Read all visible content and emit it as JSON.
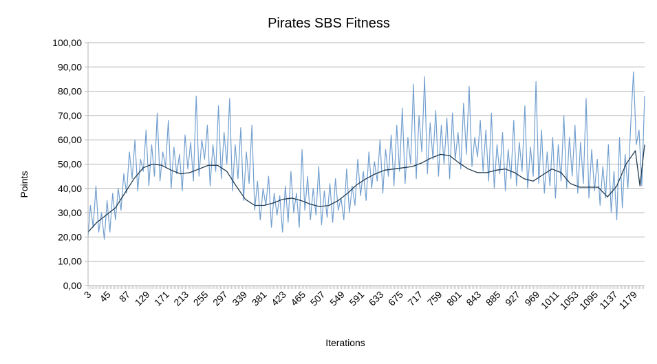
{
  "chart_data": {
    "type": "line",
    "title": "Pirates SBS Fitness",
    "xlabel": "Iterations",
    "ylabel": "Points",
    "x_range": [
      1,
      1200
    ],
    "ylim": [
      0,
      100
    ],
    "y_ticks": [
      "0,00",
      "10,00",
      "20,00",
      "30,00",
      "40,00",
      "50,00",
      "60,00",
      "70,00",
      "80,00",
      "90,00",
      "100,00"
    ],
    "x_ticks": [
      3,
      45,
      87,
      129,
      171,
      213,
      255,
      297,
      339,
      381,
      423,
      465,
      507,
      549,
      591,
      633,
      675,
      717,
      759,
      801,
      843,
      885,
      927,
      969,
      1011,
      1053,
      1095,
      1137,
      1179
    ],
    "grid": "horizontal",
    "colors": {
      "raw": "#729fcf",
      "smooth": "#1f3a4f",
      "grid": "#b3b3b3"
    },
    "series": [
      {
        "role": "raw",
        "description_points": "approximate envelope samples (iteration, points)",
        "x": [
          1,
          6,
          12,
          18,
          24,
          30,
          36,
          42,
          48,
          54,
          60,
          66,
          72,
          78,
          84,
          90,
          96,
          102,
          108,
          114,
          120,
          126,
          132,
          138,
          144,
          150,
          156,
          162,
          168,
          174,
          180,
          186,
          192,
          198,
          204,
          210,
          216,
          222,
          228,
          234,
          240,
          246,
          252,
          258,
          264,
          270,
          276,
          282,
          288,
          294,
          300,
          306,
          312,
          318,
          324,
          330,
          336,
          342,
          348,
          354,
          360,
          366,
          372,
          378,
          384,
          390,
          396,
          402,
          408,
          414,
          420,
          426,
          432,
          438,
          444,
          450,
          456,
          462,
          468,
          474,
          480,
          486,
          492,
          498,
          504,
          510,
          516,
          522,
          528,
          534,
          540,
          546,
          552,
          558,
          564,
          570,
          576,
          582,
          588,
          594,
          600,
          606,
          612,
          618,
          624,
          630,
          636,
          642,
          648,
          654,
          660,
          666,
          672,
          678,
          684,
          690,
          696,
          702,
          708,
          714,
          720,
          726,
          732,
          738,
          744,
          750,
          756,
          762,
          768,
          774,
          780,
          786,
          792,
          798,
          804,
          810,
          816,
          822,
          828,
          834,
          840,
          846,
          852,
          858,
          864,
          870,
          876,
          882,
          888,
          894,
          900,
          906,
          912,
          918,
          924,
          930,
          936,
          942,
          948,
          954,
          960,
          966,
          972,
          978,
          984,
          990,
          996,
          1002,
          1008,
          1014,
          1020,
          1026,
          1032,
          1038,
          1044,
          1050,
          1056,
          1062,
          1068,
          1074,
          1080,
          1086,
          1092,
          1098,
          1104,
          1110,
          1116,
          1122,
          1128,
          1134,
          1140,
          1146,
          1152,
          1158,
          1164,
          1170,
          1176,
          1182,
          1188,
          1194,
          1200
        ],
        "values": [
          20,
          33,
          24,
          41,
          22,
          30,
          19,
          35,
          22,
          38,
          27,
          40,
          31,
          46,
          38,
          55,
          44,
          60,
          39,
          52,
          47,
          64,
          41,
          58,
          45,
          71,
          43,
          55,
          49,
          68,
          40,
          57,
          46,
          54,
          39,
          62,
          48,
          59,
          43,
          78,
          45,
          60,
          52,
          66,
          41,
          58,
          47,
          74,
          44,
          63,
          50,
          77,
          39,
          58,
          44,
          65,
          35,
          55,
          42,
          66,
          31,
          43,
          27,
          40,
          33,
          45,
          24,
          38,
          29,
          37,
          22,
          41,
          26,
          47,
          30,
          38,
          24,
          56,
          31,
          45,
          27,
          40,
          29,
          49,
          25,
          39,
          28,
          42,
          26,
          44,
          31,
          36,
          27,
          48,
          30,
          41,
          33,
          52,
          37,
          47,
          35,
          55,
          40,
          51,
          43,
          60,
          38,
          56,
          45,
          62,
          41,
          66,
          47,
          73,
          42,
          61,
          50,
          83,
          44,
          70,
          55,
          86,
          46,
          67,
          52,
          72,
          45,
          66,
          50,
          69,
          44,
          71,
          52,
          63,
          48,
          75,
          54,
          82,
          49,
          61,
          53,
          68,
          47,
          64,
          43,
          71,
          40,
          58,
          46,
          63,
          39,
          56,
          44,
          68,
          41,
          59,
          47,
          74,
          40,
          57,
          45,
          84,
          42,
          64,
          38,
          55,
          41,
          61,
          36,
          58,
          43,
          70,
          40,
          61,
          45,
          66,
          38,
          59,
          42,
          77,
          36,
          56,
          39,
          52,
          33,
          49,
          36,
          58,
          30,
          47,
          27,
          61,
          32,
          54,
          40,
          66,
          88,
          58,
          64,
          41,
          78
        ]
      },
      {
        "role": "smooth",
        "x": [
          1,
          20,
          40,
          60,
          80,
          100,
          120,
          140,
          160,
          180,
          200,
          220,
          240,
          260,
          280,
          300,
          320,
          340,
          360,
          380,
          400,
          420,
          440,
          460,
          480,
          500,
          520,
          540,
          560,
          580,
          600,
          620,
          640,
          660,
          680,
          700,
          720,
          740,
          760,
          780,
          800,
          820,
          840,
          860,
          880,
          900,
          920,
          940,
          960,
          980,
          1000,
          1020,
          1040,
          1060,
          1080,
          1100,
          1120,
          1140,
          1160,
          1180,
          1190,
          1200
        ],
        "values": [
          22,
          26,
          29,
          32,
          38,
          44,
          48.5,
          50,
          49.5,
          47.5,
          46,
          46.5,
          48,
          49.5,
          49.5,
          47,
          41,
          35.5,
          33,
          33,
          34,
          35.5,
          36,
          35,
          33.5,
          32.5,
          33,
          35,
          38,
          41.5,
          44,
          46,
          47.5,
          48,
          48.5,
          49,
          50.5,
          52.5,
          54,
          53.5,
          50.5,
          48,
          46.5,
          46.5,
          47.5,
          48,
          46.5,
          44,
          43,
          45.5,
          48,
          46.5,
          42,
          40.5,
          40.5,
          40.5,
          36.5,
          41,
          50,
          55.5,
          41,
          58
        ]
      }
    ]
  }
}
